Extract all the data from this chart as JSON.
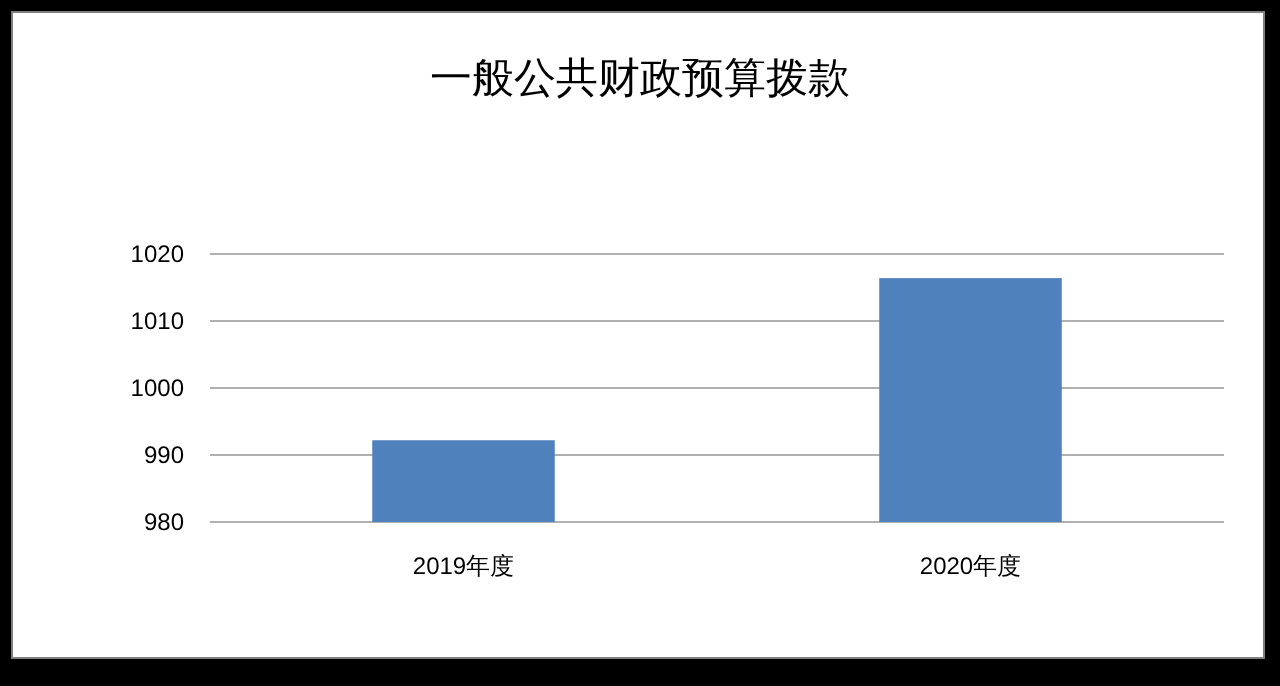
{
  "chart_data": {
    "type": "bar",
    "title": "一般公共财政预算拨款",
    "categories": [
      "2019年度",
      "2020年度"
    ],
    "values": [
      992.2,
      1016.4
    ],
    "color": "#4f81bd",
    "ylim": [
      980,
      1020
    ],
    "yticks": [
      980,
      990,
      1000,
      1010,
      1020
    ],
    "grid": "y"
  }
}
